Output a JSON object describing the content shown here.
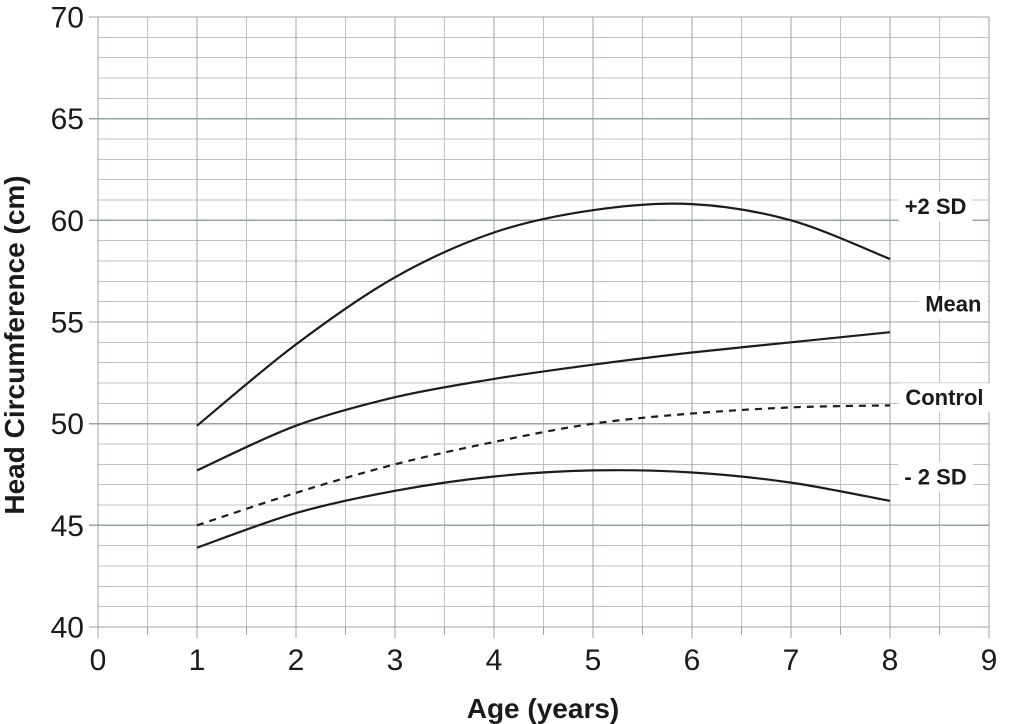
{
  "page": {
    "background": "#ffffff"
  },
  "chart_data": {
    "type": "line",
    "title": "",
    "xlabel": "Age (years)",
    "ylabel": "Head Circumference (cm)",
    "xlim": [
      0,
      9
    ],
    "ylim": [
      40,
      70
    ],
    "x_major_step": 1,
    "x_minor_step": 0.5,
    "y_major_step": 5,
    "y_minor_step": 1,
    "grid": true,
    "legend_position": "inline-right-labels",
    "x_tick_labels": [
      "0",
      "1",
      "2",
      "3",
      "4",
      "5",
      "6",
      "7",
      "8",
      "9"
    ],
    "y_tick_labels": [
      "40",
      "45",
      "50",
      "55",
      "60",
      "65",
      "70"
    ],
    "x": [
      1,
      2,
      3,
      4,
      5,
      6,
      7,
      8
    ],
    "series": [
      {
        "name": "plus-2sd",
        "style": "solid",
        "values": [
          49.9,
          53.9,
          57.2,
          59.4,
          60.5,
          60.8,
          60.0,
          58.1
        ],
        "label": {
          "text": "+2 SD",
          "x": 8.46,
          "y": 60.7
        }
      },
      {
        "name": "mean",
        "style": "solid",
        "values": [
          47.7,
          49.9,
          51.3,
          52.2,
          52.9,
          53.5,
          54.0,
          54.5
        ],
        "label": {
          "text": "Mean",
          "x": 8.64,
          "y": 55.9
        }
      },
      {
        "name": "control",
        "style": "dashed",
        "values": [
          45.0,
          46.6,
          48.0,
          49.1,
          50.0,
          50.5,
          50.8,
          50.9
        ],
        "label": {
          "text": "Control",
          "x": 8.55,
          "y": 51.3
        }
      },
      {
        "name": "minus-2sd",
        "style": "solid",
        "values": [
          43.9,
          45.6,
          46.7,
          47.4,
          47.7,
          47.6,
          47.1,
          46.2
        ],
        "label": {
          "text": "- 2 SD",
          "x": 8.46,
          "y": 47.4
        }
      }
    ],
    "colors": {
      "curve": "#1c1c1c",
      "grid_minor": "#b9c3c3",
      "grid_major": "#98a4a4",
      "text": "#1a1a1a",
      "label_background": "#ffffff"
    }
  }
}
